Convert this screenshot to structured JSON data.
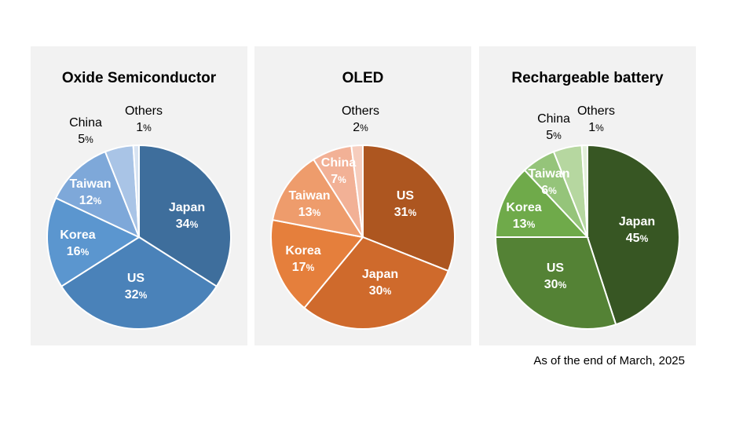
{
  "footnote": "As of the end of March, 2025",
  "chart_data": [
    {
      "type": "pie",
      "title": "Oxide Semiconductor",
      "slices": [
        {
          "label": "Japan",
          "value": 34,
          "color": "#3e6e9c"
        },
        {
          "label": "US",
          "value": 32,
          "color": "#4a82b9"
        },
        {
          "label": "Korea",
          "value": 16,
          "color": "#5b96cf"
        },
        {
          "label": "Taiwan",
          "value": 12,
          "color": "#7ea8d9"
        },
        {
          "label": "China",
          "value": 5,
          "color": "#a9c4e6"
        },
        {
          "label": "Others",
          "value": 1,
          "color": "#d7e3f2"
        }
      ]
    },
    {
      "type": "pie",
      "title": "OLED",
      "slices": [
        {
          "label": "US",
          "value": 31,
          "color": "#ad5620"
        },
        {
          "label": "Japan",
          "value": 30,
          "color": "#cf6a2c"
        },
        {
          "label": "Korea",
          "value": 17,
          "color": "#e57f3c"
        },
        {
          "label": "Taiwan",
          "value": 13,
          "color": "#ee9c6c"
        },
        {
          "label": "China",
          "value": 7,
          "color": "#f2b196"
        },
        {
          "label": "Others",
          "value": 2,
          "color": "#f6cdbd"
        }
      ]
    },
    {
      "type": "pie",
      "title": "Rechargeable battery",
      "slices": [
        {
          "label": "Japan",
          "value": 45,
          "color": "#375623"
        },
        {
          "label": "US",
          "value": 30,
          "color": "#548235"
        },
        {
          "label": "Korea",
          "value": 13,
          "color": "#6faa4a"
        },
        {
          "label": "Taiwan",
          "value": 6,
          "color": "#95c47a"
        },
        {
          "label": "China",
          "value": 5,
          "color": "#b6d7a0"
        },
        {
          "label": "Others",
          "value": 1,
          "color": "#e2efd9"
        }
      ]
    }
  ]
}
